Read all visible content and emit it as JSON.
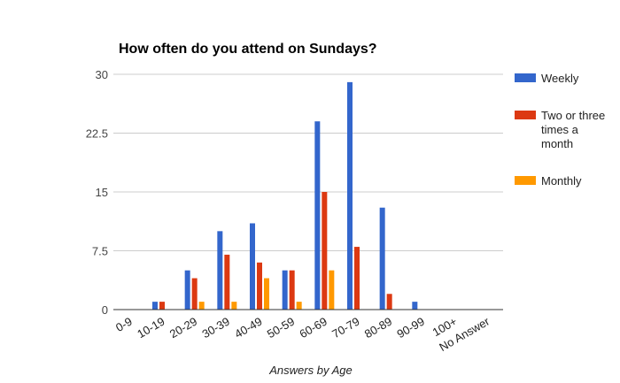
{
  "chart_data": {
    "type": "bar",
    "title": "How often do you attend on Sundays?",
    "xlabel": "Answers by Age",
    "ylabel": "",
    "ylim": [
      0,
      30
    ],
    "yticks": [
      "0",
      "7.5",
      "15",
      "22.5",
      "30"
    ],
    "grid": true,
    "legend_position": "right",
    "categories": [
      "0-9",
      "10-19",
      "20-29",
      "30-39",
      "40-49",
      "50-59",
      "60-69",
      "70-79",
      "80-89",
      "90-99",
      "100+",
      "No Answer"
    ],
    "series": [
      {
        "name": "Weekly",
        "color": "#3366cc",
        "values": [
          0,
          1,
          5,
          10,
          11,
          5,
          24,
          29,
          13,
          1,
          0,
          0
        ]
      },
      {
        "name": "Two or three times a month",
        "legend_lines": [
          "Two or three",
          "times a",
          "month"
        ],
        "color": "#dc3912",
        "values": [
          0,
          1,
          4,
          7,
          6,
          5,
          15,
          8,
          2,
          0,
          0,
          0
        ]
      },
      {
        "name": "Monthly",
        "color": "#ff9900",
        "values": [
          0,
          0,
          1,
          1,
          4,
          1,
          5,
          0,
          0,
          0,
          0,
          0
        ]
      }
    ]
  }
}
